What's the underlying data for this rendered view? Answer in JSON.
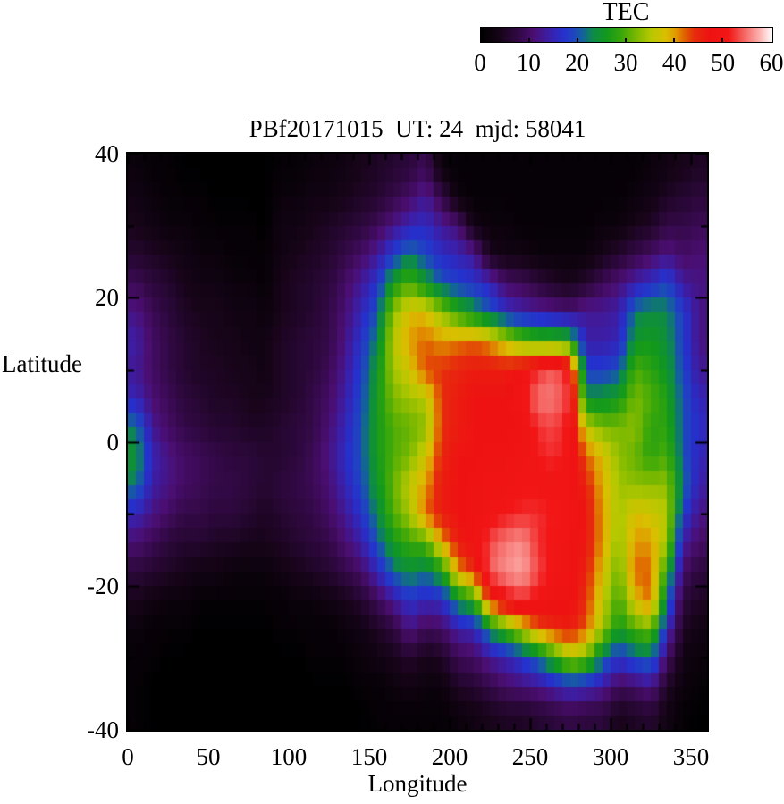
{
  "chart_data": {
    "type": "heatmap",
    "title": "PBf20171015  UT: 24  mjd: 58041",
    "xlabel": "Longitude",
    "ylabel": "Latitude",
    "xlim": [
      0,
      360
    ],
    "ylim": [
      -40,
      40
    ],
    "xticks_major": [
      0,
      50,
      100,
      150,
      200,
      250,
      300,
      350
    ],
    "xtick_minor_step": 10,
    "yticks_major": [
      40,
      20,
      0,
      -20,
      -40
    ],
    "ytick_minor_step": 10,
    "grid_lines": false,
    "colorbar_label": "TEC",
    "colorbar_ticks": [
      0,
      10,
      20,
      30,
      40,
      50,
      60
    ],
    "value_range": [
      0,
      60
    ],
    "colormap_stops": [
      [
        0,
        "#000000"
      ],
      [
        4,
        "#170419"
      ],
      [
        8,
        "#330947"
      ],
      [
        11,
        "#4b0e72"
      ],
      [
        14,
        "#3c1ea6"
      ],
      [
        17,
        "#2531cd"
      ],
      [
        19,
        "#1f44c0"
      ],
      [
        21,
        "#13629a"
      ],
      [
        23,
        "#0d8a4a"
      ],
      [
        26,
        "#12991c"
      ],
      [
        29,
        "#3aa70a"
      ],
      [
        32,
        "#7ab800"
      ],
      [
        35,
        "#b6c800"
      ],
      [
        38,
        "#d9bf00"
      ],
      [
        40,
        "#e09b00"
      ],
      [
        42,
        "#e05f00"
      ],
      [
        44,
        "#e62b0d"
      ],
      [
        47,
        "#ee1312"
      ],
      [
        51,
        "#f21617"
      ],
      [
        54,
        "#f4615e"
      ],
      [
        57,
        "#fba8a4"
      ],
      [
        60,
        "#ffffff"
      ]
    ],
    "grid": {
      "comment": "Approximate TEC values sampled on a 10-deg lon x 4-deg lat grid, rows from lat +40..+36 (top) down to -36..-40, columns lon 0..360",
      "lon_start": 0,
      "lon_step": 10,
      "lat_start": 40,
      "lat_step": -4,
      "ncols": 36,
      "nrows": 20,
      "values": [
        [
          2,
          1,
          1,
          0,
          0,
          0,
          0,
          0,
          0,
          1,
          1,
          2,
          2,
          3,
          4,
          5,
          6,
          7,
          9,
          2,
          1,
          1,
          1,
          1,
          1,
          1,
          1,
          1,
          1,
          1,
          1,
          1,
          2,
          3,
          4,
          5
        ],
        [
          3,
          2,
          1,
          1,
          1,
          0,
          0,
          0,
          0,
          2,
          2,
          3,
          3,
          4,
          5,
          6,
          8,
          10,
          13,
          8,
          2,
          1,
          1,
          1,
          1,
          1,
          1,
          1,
          1,
          1,
          1,
          2,
          3,
          5,
          6,
          7
        ],
        [
          4,
          3,
          2,
          2,
          1,
          1,
          1,
          1,
          0,
          3,
          3,
          4,
          5,
          6,
          7,
          9,
          12,
          15,
          16,
          13,
          11,
          3,
          2,
          2,
          1,
          1,
          1,
          1,
          1,
          2,
          2,
          4,
          5,
          8,
          8,
          9
        ],
        [
          6,
          5,
          4,
          3,
          2,
          2,
          1,
          1,
          1,
          3,
          4,
          5,
          6,
          8,
          10,
          13,
          18,
          22,
          19,
          16,
          15,
          13,
          4,
          3,
          3,
          2,
          2,
          2,
          2,
          4,
          6,
          8,
          10,
          12,
          10,
          11
        ],
        [
          9,
          7,
          6,
          4,
          3,
          3,
          2,
          2,
          1,
          4,
          5,
          6,
          7,
          10,
          13,
          17,
          26,
          30,
          25,
          20,
          18,
          17,
          15,
          10,
          9,
          7,
          5,
          4,
          6,
          9,
          11,
          14,
          16,
          19,
          13,
          12
        ],
        [
          12,
          9,
          7,
          5,
          4,
          4,
          3,
          3,
          2,
          4,
          5,
          6,
          8,
          11,
          15,
          20,
          33,
          38,
          38,
          33,
          28,
          24,
          20,
          16,
          14,
          13,
          12,
          11,
          13,
          13,
          14,
          22,
          24,
          23,
          18,
          12
        ],
        [
          14,
          10,
          8,
          6,
          5,
          4,
          4,
          3,
          3,
          5,
          6,
          7,
          8,
          12,
          17,
          23,
          35,
          40,
          42,
          40,
          41,
          42,
          40,
          36,
          32,
          30,
          30,
          28,
          14,
          14,
          15,
          25,
          26,
          24,
          18,
          12
        ],
        [
          13,
          10,
          8,
          6,
          5,
          5,
          4,
          4,
          3,
          5,
          6,
          7,
          9,
          13,
          18,
          25,
          34,
          37,
          43,
          44,
          45,
          46,
          46,
          46,
          48,
          52,
          54,
          50,
          18,
          18,
          20,
          30,
          28,
          25,
          19,
          13
        ],
        [
          15,
          11,
          9,
          7,
          6,
          5,
          5,
          4,
          4,
          5,
          6,
          8,
          10,
          14,
          19,
          26,
          32,
          34,
          35,
          44,
          46,
          47,
          47,
          47,
          50,
          55,
          55,
          52,
          24,
          24,
          26,
          32,
          30,
          27,
          20,
          15
        ],
        [
          22,
          13,
          10,
          8,
          7,
          6,
          6,
          5,
          5,
          6,
          7,
          8,
          11,
          15,
          20,
          26,
          30,
          31,
          33,
          44,
          46,
          47,
          47,
          47,
          48,
          52,
          53,
          50,
          36,
          32,
          32,
          33,
          28,
          28,
          20,
          16
        ],
        [
          25,
          15,
          12,
          10,
          9,
          8,
          7,
          7,
          6,
          6,
          7,
          9,
          12,
          16,
          20,
          26,
          30,
          32,
          37,
          45,
          47,
          47,
          48,
          48,
          49,
          51,
          52,
          50,
          42,
          38,
          33,
          31,
          28,
          30,
          20,
          15
        ],
        [
          22,
          14,
          12,
          10,
          9,
          8,
          8,
          7,
          6,
          7,
          8,
          9,
          11,
          15,
          19,
          25,
          31,
          36,
          40,
          46,
          47,
          48,
          49,
          49,
          50,
          50,
          50,
          49,
          45,
          39,
          34,
          33,
          33,
          33,
          22,
          14
        ],
        [
          15,
          12,
          10,
          8,
          8,
          7,
          7,
          6,
          5,
          6,
          7,
          8,
          10,
          13,
          17,
          23,
          30,
          34,
          42,
          46,
          47,
          48,
          50,
          51,
          52,
          52,
          51,
          50,
          46,
          40,
          34,
          38,
          37,
          35,
          18,
          12
        ],
        [
          11,
          9,
          7,
          6,
          6,
          5,
          5,
          4,
          4,
          5,
          6,
          7,
          8,
          11,
          14,
          20,
          26,
          29,
          30,
          40,
          46,
          48,
          53,
          55,
          56,
          52,
          50,
          49,
          46,
          40,
          33,
          40,
          40,
          34,
          14,
          10
        ],
        [
          7,
          6,
          5,
          4,
          3,
          3,
          2,
          2,
          2,
          3,
          4,
          5,
          6,
          8,
          10,
          15,
          21,
          24,
          22,
          26,
          40,
          44,
          54,
          56,
          57,
          53,
          50,
          49,
          45,
          38,
          31,
          42,
          42,
          27,
          10,
          7
        ],
        [
          4,
          3,
          2,
          2,
          1,
          1,
          1,
          1,
          1,
          1,
          2,
          2,
          3,
          4,
          6,
          9,
          13,
          17,
          15,
          16,
          24,
          28,
          45,
          50,
          52,
          50,
          48,
          48,
          44,
          36,
          29,
          38,
          42,
          22,
          7,
          5
        ],
        [
          2,
          1,
          1,
          1,
          0,
          0,
          0,
          0,
          0,
          1,
          1,
          1,
          1,
          2,
          3,
          5,
          7,
          12,
          9,
          10,
          14,
          15,
          24,
          30,
          36,
          42,
          45,
          46,
          42,
          34,
          26,
          30,
          32,
          16,
          5,
          3
        ],
        [
          1,
          1,
          0,
          0,
          0,
          0,
          0,
          0,
          0,
          0,
          0,
          1,
          1,
          1,
          2,
          3,
          4,
          6,
          4,
          5,
          9,
          10,
          13,
          15,
          18,
          22,
          28,
          35,
          32,
          22,
          17,
          20,
          22,
          10,
          3,
          2
        ],
        [
          1,
          0,
          0,
          0,
          0,
          0,
          0,
          0,
          0,
          0,
          0,
          0,
          0,
          0,
          1,
          1,
          2,
          3,
          2,
          2,
          5,
          6,
          8,
          10,
          11,
          12,
          14,
          16,
          15,
          13,
          9,
          10,
          12,
          5,
          2,
          1
        ],
        [
          1,
          0,
          0,
          0,
          0,
          0,
          0,
          0,
          0,
          0,
          0,
          0,
          0,
          0,
          0,
          1,
          1,
          1,
          1,
          1,
          2,
          3,
          4,
          5,
          5,
          6,
          7,
          8,
          7,
          7,
          4,
          5,
          6,
          3,
          1,
          0
        ]
      ]
    }
  }
}
